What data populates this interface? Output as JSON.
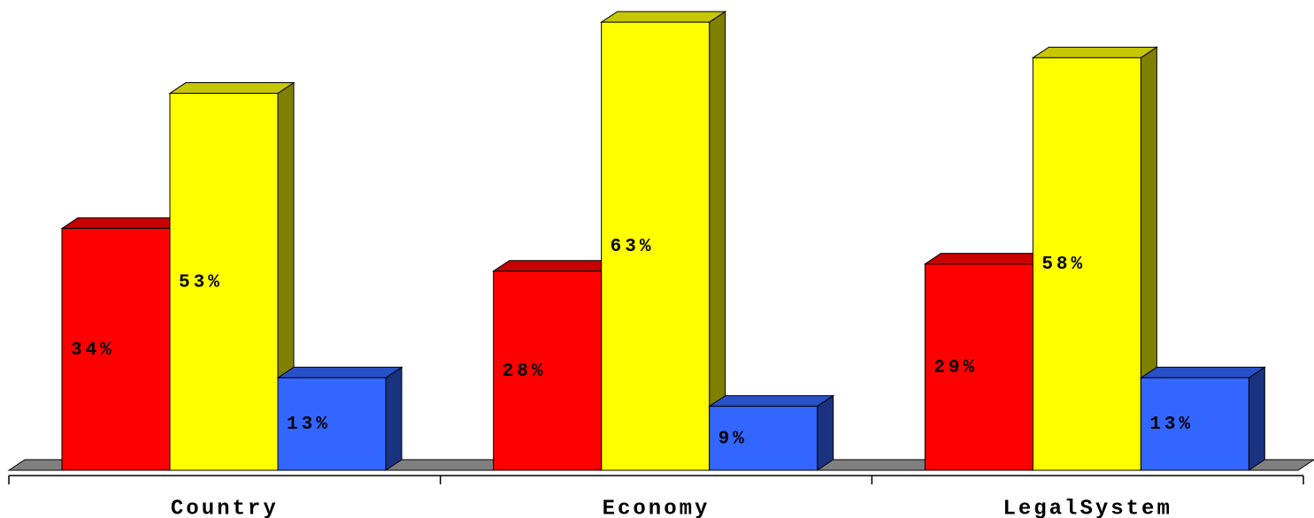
{
  "chart_data": {
    "type": "bar3d",
    "categories": [
      "Country",
      "Economy",
      "LegalSystem"
    ],
    "series": [
      {
        "color": "#ff0000",
        "values": [
          34,
          28,
          29
        ],
        "value_labels": [
          "34%",
          "28%",
          "29%"
        ]
      },
      {
        "color": "#ffff00",
        "values": [
          53,
          63,
          58
        ],
        "value_labels": [
          "53%",
          "63%",
          "58%"
        ]
      },
      {
        "color": "#3366ff",
        "values": [
          13,
          9,
          13
        ],
        "value_labels": [
          "13%",
          "9%",
          "13%"
        ]
      }
    ],
    "ylim": [
      0,
      65
    ]
  }
}
